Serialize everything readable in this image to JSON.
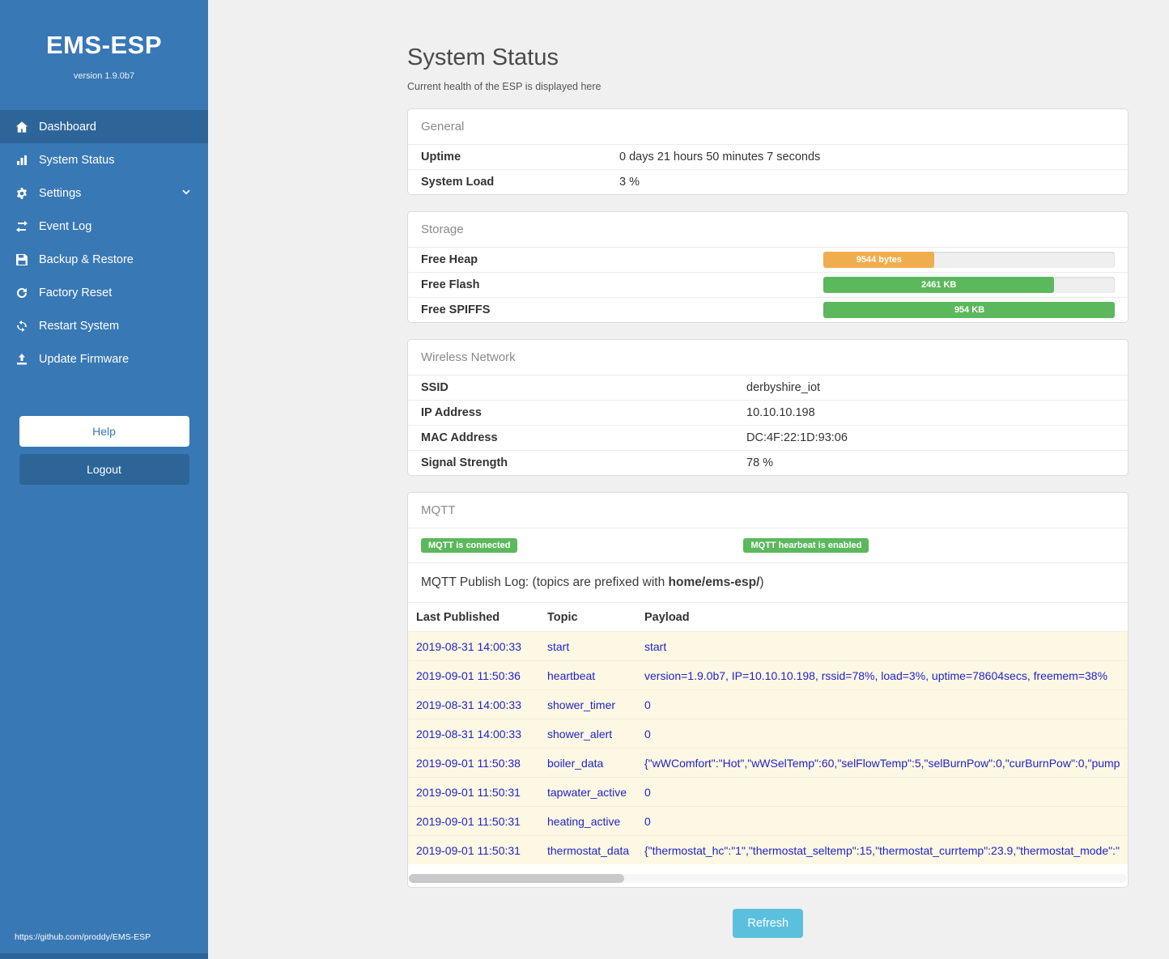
{
  "sidebar": {
    "brand": "EMS-ESP",
    "version": "version 1.9.0b7",
    "items": [
      {
        "label": "Dashboard",
        "icon": "home-icon",
        "active": true
      },
      {
        "label": "System Status",
        "icon": "bar-chart-icon",
        "active": false
      },
      {
        "label": "Settings",
        "icon": "gear-icon",
        "active": false,
        "chevron": true
      },
      {
        "label": "Event Log",
        "icon": "swap-arrows-icon",
        "active": false
      },
      {
        "label": "Backup & Restore",
        "icon": "floppy-icon",
        "active": false
      },
      {
        "label": "Factory Reset",
        "icon": "reset-arrow-icon",
        "active": false
      },
      {
        "label": "Restart System",
        "icon": "restart-icon",
        "active": false
      },
      {
        "label": "Update Firmware",
        "icon": "upload-icon",
        "active": false
      }
    ],
    "help_label": "Help",
    "logout_label": "Logout",
    "footer_url": "https://github.com/proddy/EMS-ESP"
  },
  "page": {
    "title": "System Status",
    "subtitle": "Current health of the ESP is displayed here"
  },
  "general": {
    "header": "General",
    "rows": [
      {
        "label": "Uptime",
        "value": "0 days 21 hours 50 minutes 7 seconds"
      },
      {
        "label": "System Load",
        "value": "3 %"
      }
    ]
  },
  "storage": {
    "header": "Storage",
    "rows": [
      {
        "label": "Free Heap",
        "bar_label": "9544 bytes",
        "percent": 38,
        "color": "#f0ad4e"
      },
      {
        "label": "Free Flash",
        "bar_label": "2461 KB",
        "percent": 79,
        "color": "#5cb85c"
      },
      {
        "label": "Free SPIFFS",
        "bar_label": "954 KB",
        "percent": 100,
        "color": "#5cb85c"
      }
    ]
  },
  "wireless": {
    "header": "Wireless Network",
    "rows": [
      {
        "label": "SSID",
        "value": "derbyshire_iot"
      },
      {
        "label": "IP Address",
        "value": "10.10.10.198"
      },
      {
        "label": "MAC Address",
        "value": "DC:4F:22:1D:93:06"
      },
      {
        "label": "Signal Strength",
        "value": "78 %"
      }
    ]
  },
  "mqtt": {
    "header": "MQTT",
    "badges": [
      "MQTT is connected",
      "MQTT hearbeat is enabled"
    ],
    "publish_log_prefix": "MQTT Publish Log: (topics are prefixed with ",
    "publish_log_bold": "home/ems-esp/",
    "publish_log_suffix": ")",
    "table": {
      "headers": [
        "Last Published",
        "Topic",
        "Payload"
      ],
      "rows": [
        {
          "published": "2019-08-31 14:00:33",
          "topic": "start",
          "payload": "start"
        },
        {
          "published": "2019-09-01 11:50:36",
          "topic": "heartbeat",
          "payload": "version=1.9.0b7, IP=10.10.10.198, rssid=78%, load=3%, uptime=78604secs, freemem=38%"
        },
        {
          "published": "2019-08-31 14:00:33",
          "topic": "shower_timer",
          "payload": "0"
        },
        {
          "published": "2019-08-31 14:00:33",
          "topic": "shower_alert",
          "payload": "0"
        },
        {
          "published": "2019-09-01 11:50:38",
          "topic": "boiler_data",
          "payload": "{\"wWComfort\":\"Hot\",\"wWSelTemp\":60,\"selFlowTemp\":5,\"selBurnPow\":0,\"curBurnPow\":0,\"pump"
        },
        {
          "published": "2019-09-01 11:50:31",
          "topic": "tapwater_active",
          "payload": "0"
        },
        {
          "published": "2019-09-01 11:50:31",
          "topic": "heating_active",
          "payload": "0"
        },
        {
          "published": "2019-09-01 11:50:31",
          "topic": "thermostat_data",
          "payload": "{\"thermostat_hc\":\"1\",\"thermostat_seltemp\":15,\"thermostat_currtemp\":23.9,\"thermostat_mode\":\""
        }
      ]
    }
  },
  "refresh_label": "Refresh",
  "colors": {
    "sidebar": "#3878b5",
    "sidebar_active": "#2d6598",
    "success": "#5cb85c",
    "warning": "#f0ad4e",
    "info": "#5bc0de",
    "link": "#2222cc"
  }
}
